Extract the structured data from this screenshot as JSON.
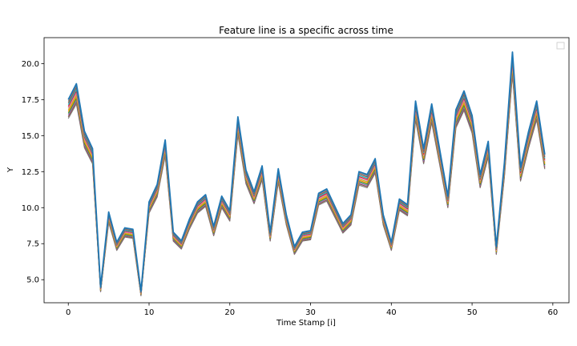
{
  "chart_data": {
    "type": "line",
    "title": "Feature line is a specific across time",
    "xlabel": "Time Stamp [i]",
    "ylabel": "Y",
    "xlim": [
      -3,
      62
    ],
    "ylim": [
      3.4,
      21.8
    ],
    "xticks": [
      0,
      10,
      20,
      30,
      40,
      50,
      60
    ],
    "yticks": [
      5.0,
      7.5,
      10.0,
      12.5,
      15.0,
      17.5,
      20.0
    ],
    "grid": false,
    "legend": "top-right (empty)",
    "band": {
      "series_count": 12,
      "colors": [
        "#7f7f7f",
        "#8c564b",
        "#9467bd",
        "#2ca02c",
        "#ff7f0e",
        "#bcbd22",
        "#e377c2",
        "#d62728",
        "#17becf",
        "#8c564b",
        "#7f7f7f",
        "#1f77b4"
      ],
      "spread_fraction": 0.075
    },
    "x": [
      0,
      1,
      2,
      3,
      4,
      5,
      6,
      7,
      8,
      9,
      10,
      11,
      12,
      13,
      14,
      15,
      16,
      17,
      18,
      19,
      20,
      21,
      22,
      23,
      24,
      25,
      26,
      27,
      28,
      29,
      30,
      31,
      32,
      33,
      34,
      35,
      36,
      37,
      38,
      39,
      40,
      41,
      42,
      43,
      44,
      45,
      46,
      47,
      48,
      49,
      50,
      51,
      52,
      53,
      54,
      55,
      56,
      57,
      58,
      59
    ],
    "top_series": [
      17.5,
      18.6,
      15.3,
      14.1,
      4.5,
      9.7,
      7.6,
      8.6,
      8.5,
      4.2,
      10.4,
      11.6,
      14.7,
      8.3,
      7.7,
      9.2,
      10.4,
      10.9,
      8.7,
      10.8,
      9.8,
      16.3,
      12.6,
      11.1,
      12.9,
      8.3,
      12.7,
      9.5,
      7.3,
      8.3,
      8.4,
      11.0,
      11.3,
      10.1,
      8.9,
      9.5,
      12.5,
      12.3,
      13.4,
      9.5,
      7.6,
      10.6,
      10.2,
      17.4,
      14.1,
      17.2,
      14.0,
      10.8,
      16.8,
      18.1,
      16.4,
      12.3,
      14.6,
      7.3,
      13.1,
      20.8,
      12.8,
      15.3,
      17.4,
      13.7
    ]
  }
}
